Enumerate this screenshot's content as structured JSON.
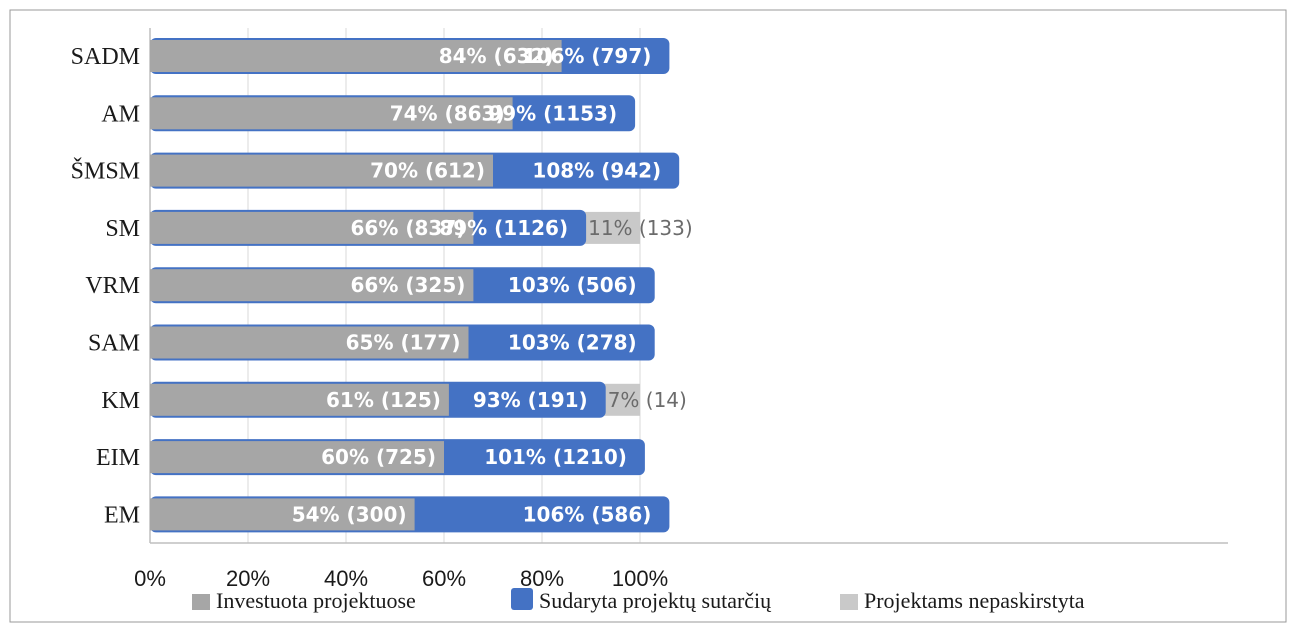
{
  "chart_data": {
    "type": "bar",
    "orientation": "horizontal",
    "categories": [
      "SADM",
      "AM",
      "ŠMSM",
      "SM",
      "VRM",
      "SAM",
      "KM",
      "EIM",
      "EM"
    ],
    "series": [
      {
        "name": "Investuota projektuose",
        "color": "#a6a6a6",
        "values": [
          84,
          74,
          70,
          66,
          66,
          65,
          61,
          60,
          54
        ],
        "labels": [
          "84% (632)",
          "74% (863)",
          "70% (612)",
          "66% (837)",
          "66% (325)",
          "65% (177)",
          "61% (125)",
          "60% (725)",
          "54% (300)"
        ]
      },
      {
        "name": "Sudaryta projektų sutarčių",
        "color": "#4472c4",
        "values": [
          106,
          99,
          108,
          89,
          103,
          103,
          93,
          101,
          106
        ],
        "labels": [
          "106% (797)",
          "99% (1153)",
          "108% (942)",
          "89% (1126)",
          "103% (506)",
          "103% (278)",
          "93% (191)",
          "101% (1210)",
          "106% (586)"
        ]
      },
      {
        "name": "Projektams nepaskirstyta",
        "color": "#c9c9c9",
        "values": [
          0,
          0,
          0,
          11,
          0,
          0,
          7,
          0,
          0
        ],
        "labels": [
          "",
          "",
          "",
          "11% (133)",
          "",
          "",
          "7% (14)",
          "",
          ""
        ]
      }
    ],
    "x_ticks": [
      "0%",
      "20%",
      "40%",
      "60%",
      "80%",
      "100%"
    ],
    "xlim": [
      0,
      110
    ],
    "grid": true,
    "legend_position": "bottom"
  }
}
